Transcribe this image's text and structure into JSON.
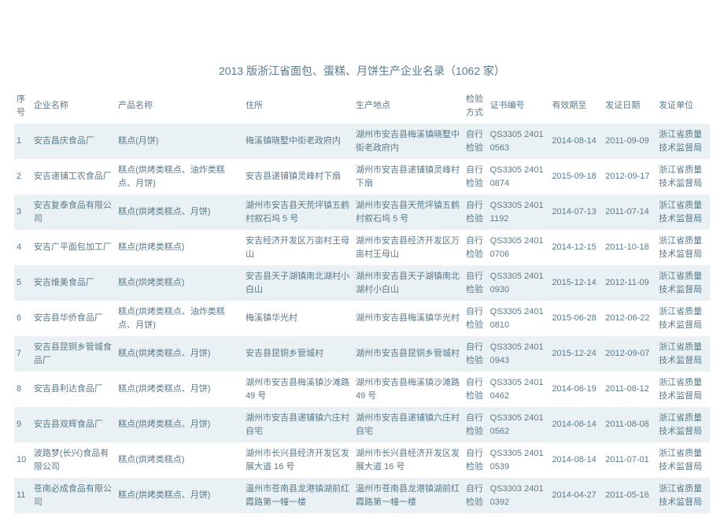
{
  "title": "2013 版浙江省面包、蛋糕、月饼生产企业名录（1062 家）",
  "columns": [
    "序号",
    "企业名称",
    "产品名称",
    "住所",
    "生产地点",
    "检验方式",
    "证书编号",
    "有效期至",
    "发证日期",
    "发证单位"
  ],
  "rows": [
    {
      "seq": "1",
      "name": "安吉昌庆食品厂",
      "prod": "糕点(月饼)",
      "addr": "梅溪镇晓墅中街老政府内",
      "place": "湖州市安吉县梅溪镇晓墅中街老政府内",
      "insp": "自行检验",
      "cert": "QS3305 2401 0563",
      "exp": "2014-08-14",
      "iss": "2011-09-09",
      "unit": "浙江省质量技术监督局"
    },
    {
      "seq": "2",
      "name": "安吉递铺工农食品厂",
      "prod": "糕点(烘烤类糕点、油炸类糕点、月饼)",
      "addr": "安吉县递铺镇灵峰村下扇",
      "place": "湖州市安吉县递铺镇灵峰村下扇",
      "insp": "自行检验",
      "cert": "QS3305 2401 0874",
      "exp": "2015-09-18",
      "iss": "2012-09-17",
      "unit": "浙江省质量技术监督局"
    },
    {
      "seq": "3",
      "name": "安吉复泰食品有限公司",
      "prod": "糕点(烘烤类糕点、月饼)",
      "addr": "湖州市安吉县天荒坪镇五鹤村叙石坞 5 号",
      "place": "湖州市安吉县天荒坪镇五鹤村叙石坞 5 号",
      "insp": "自行检验",
      "cert": "QS3305 2401 1192",
      "exp": "2014-07-13",
      "iss": "2011-07-14",
      "unit": "浙江省质量技术监督局"
    },
    {
      "seq": "4",
      "name": "安吉广平面包加工厂",
      "prod": "糕点(烘烤类糕点)",
      "addr": "安吉经济开发区万亩村王母山",
      "place": "湖州市安吉县经济开发区万亩村王母山",
      "insp": "自行检验",
      "cert": "QS3305 2401 0706",
      "exp": "2014-12-15",
      "iss": "2011-10-18",
      "unit": "浙江省质量技术监督局"
    },
    {
      "seq": "5",
      "name": "安吉维美食品厂",
      "prod": "糕点(烘烤类糕点)",
      "addr": "安吉县天子湖镇南北湖村小白山",
      "place": "湖州市安吉县天子湖镇南北湖村小白山",
      "insp": "自行检验",
      "cert": "QS3305 2401 0930",
      "exp": "2015-12-14",
      "iss": "2012-11-09",
      "unit": "浙江省质量技术监督局"
    },
    {
      "seq": "6",
      "name": "安吉县华侨食品厂",
      "prod": "糕点(烘烤类糕点、油炸类糕点、月饼)",
      "addr": "梅溪镇华光村",
      "place": "湖州市安吉县梅溪镇华光村",
      "insp": "自行检验",
      "cert": "QS3305 2401 0810",
      "exp": "2015-06-28",
      "iss": "2012-06-22",
      "unit": "浙江省质量技术监督局"
    },
    {
      "seq": "7",
      "name": "安吉县昆铜乡管城食品厂",
      "prod": "糕点(烘烤类糕点、月饼)",
      "addr": "安吉县昆铜乡管城村",
      "place": "湖州市安吉县昆铜乡管城村",
      "insp": "自行检验",
      "cert": "QS3305 2401 0943",
      "exp": "2015-12-24",
      "iss": "2012-09-07",
      "unit": "浙江省质量技术监督局"
    },
    {
      "seq": "8",
      "name": "安吉县利达食品厂",
      "prod": "糕点(烘烤类糕点、月饼)",
      "addr": "湖州市安吉县梅溪镇沙滩路 49 号",
      "place": "湖州市安吉县梅溪镇沙滩路 49 号",
      "insp": "自行检验",
      "cert": "QS3305 2401 0462",
      "exp": "2014-06-19",
      "iss": "2011-08-12",
      "unit": "浙江省质量技术监督局"
    },
    {
      "seq": "9",
      "name": "安吉县双辉食品厂",
      "prod": "糕点(烘烤类糕点、月饼)",
      "addr": "湖州市安吉县递铺镇六庄村自宅",
      "place": "湖州市安吉县递铺镇六庄村自宅",
      "insp": "自行检验",
      "cert": "QS3305 2401 0562",
      "exp": "2014-08-14",
      "iss": "2011-08-08",
      "unit": "浙江省质量技术监督局"
    },
    {
      "seq": "10",
      "name": "波路梦(长兴)食品有限公司",
      "prod": "糕点(烘烤类糕点)",
      "addr": "湖州市长兴县经济开发区发展大道 16 号",
      "place": "湖州市长兴县经济开发区发展大道 16 号",
      "insp": "自行检验",
      "cert": "QS3305 2401 0539",
      "exp": "2014-08-14",
      "iss": "2011-07-01",
      "unit": "浙江省质量技术监督局"
    },
    {
      "seq": "11",
      "name": "苍南必成食品有限公司",
      "prod": "糕点(烘烤类糕点、月饼)",
      "addr": "温州市苍南县龙港镇湖前红霞路第一幢一楼",
      "place": "温州市苍南县龙港镇湖前红霞路第一幢一楼",
      "insp": "自行检验",
      "cert": "QS3303 2401 0392",
      "exp": "2014-04-27",
      "iss": "2011-05-16",
      "unit": "浙江省质量技术监督局"
    }
  ],
  "colors": {
    "text": "#5a7a8c",
    "row_even": "#eaf1f4",
    "row_odd": "#ffffff",
    "background": "#ffffff"
  },
  "font_size_body": 11,
  "font_size_title": 14
}
